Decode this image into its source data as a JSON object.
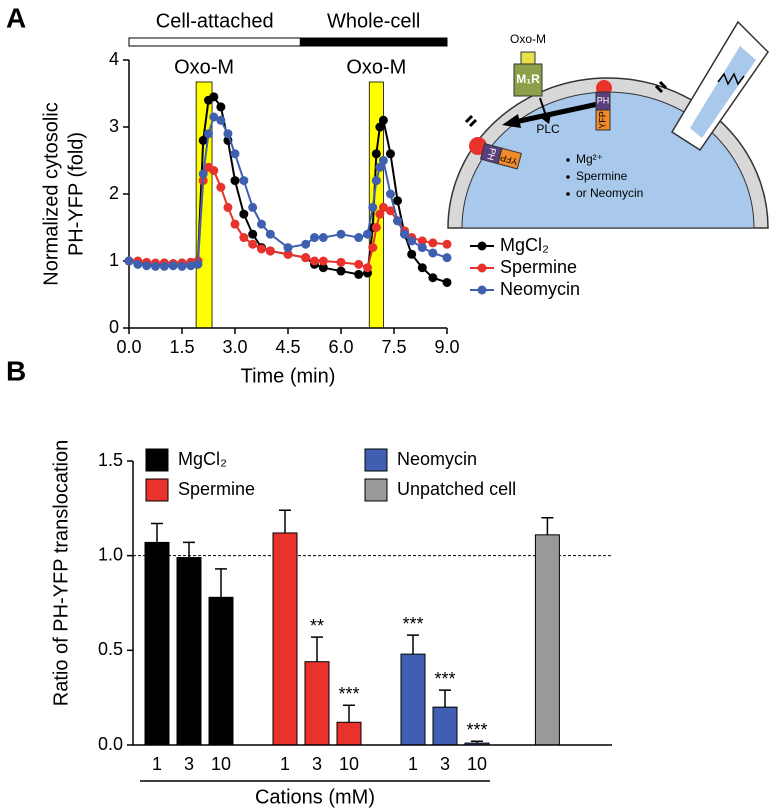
{
  "chart_data": [
    {
      "type": "line",
      "panel_label": "A",
      "x_label": "Time (min)",
      "y_label": [
        "Normalized cytosolic",
        "PH-YFP (fold)"
      ],
      "x": [
        0,
        0.25,
        0.5,
        0.75,
        1,
        1.25,
        1.5,
        1.75,
        1.95,
        2.1,
        2.25,
        2.4,
        2.6,
        2.8,
        3.0,
        3.25,
        3.5,
        3.75,
        4.0,
        4.5,
        5.0,
        5.25,
        5.5,
        6.0,
        6.5,
        6.75,
        6.9,
        7.0,
        7.1,
        7.2,
        7.4,
        7.6,
        7.8,
        8.0,
        8.3,
        8.6,
        9.0
      ],
      "series": [
        {
          "name": "MgCl₂",
          "color": "#000000",
          "values": [
            1.0,
            0.98,
            0.97,
            0.96,
            0.97,
            0.96,
            0.97,
            0.98,
            1.0,
            2.8,
            3.4,
            3.45,
            3.3,
            2.8,
            2.2,
            1.7,
            1.4,
            1.2,
            1.15,
            1.1,
            1.05,
            0.95,
            0.9,
            0.85,
            0.8,
            0.82,
            1.5,
            2.6,
            3.0,
            3.1,
            2.6,
            1.9,
            1.4,
            1.1,
            0.9,
            0.75,
            0.68
          ]
        },
        {
          "name": "Spermine",
          "color": "#e8322b",
          "values": [
            1.0,
            1.0,
            0.98,
            0.97,
            0.97,
            0.96,
            0.97,
            0.98,
            1.0,
            2.2,
            2.4,
            2.35,
            2.1,
            1.8,
            1.55,
            1.35,
            1.25,
            1.18,
            1.15,
            1.1,
            1.05,
            1.0,
            1.0,
            0.98,
            0.95,
            0.9,
            1.2,
            1.5,
            1.7,
            1.8,
            1.75,
            1.6,
            1.45,
            1.35,
            1.3,
            1.27,
            1.25
          ]
        },
        {
          "name": "Neomycin",
          "color": "#3f5fb0",
          "values": [
            1.0,
            0.95,
            0.93,
            0.92,
            0.92,
            0.93,
            0.92,
            0.93,
            0.95,
            2.3,
            2.9,
            3.15,
            3.1,
            2.9,
            2.6,
            2.2,
            1.8,
            1.55,
            1.4,
            1.2,
            1.25,
            1.35,
            1.35,
            1.4,
            1.35,
            1.4,
            1.8,
            2.2,
            2.4,
            2.5,
            2.0,
            1.6,
            1.4,
            1.3,
            1.2,
            1.12,
            1.05
          ]
        }
      ],
      "xlim": [
        0,
        9
      ],
      "xticks": [
        {
          "value": 0,
          "label": "0.0"
        },
        1.5,
        {
          "value": 3,
          "label": "3.0"
        },
        4.5,
        {
          "value": 6,
          "label": "6.0"
        },
        7.5,
        {
          "value": 9,
          "label": "9.0"
        }
      ],
      "ylim": [
        0,
        4
      ],
      "yticks": [
        0,
        1,
        2,
        3,
        4
      ],
      "shaded_regions": [
        {
          "label": "Oxo-M",
          "x": [
            1.9,
            2.35
          ],
          "color": "#ffff00"
        },
        {
          "label": "Oxo-M",
          "x": [
            6.8,
            7.2
          ],
          "color": "#ffff00"
        }
      ],
      "protocol": [
        {
          "label": "Cell-attached",
          "x": [
            0,
            4.85
          ],
          "color": "#ffffff"
        },
        {
          "label": "Whole-cell",
          "x": [
            4.85,
            9
          ],
          "color": "#000000"
        }
      ],
      "legend": "right",
      "diagram": {
        "ligand": "Oxo-M",
        "receptor": "M₁R",
        "enzyme": "PLC",
        "probe": [
          "PH",
          "YFP"
        ],
        "cations": [
          "Mg²⁺",
          "Spermine",
          "or Neomycin"
        ]
      }
    },
    {
      "type": "bar",
      "panel_label": "B",
      "x_label": "Cations (mM)",
      "y_label": "Ratio of PH-YFP translocation",
      "categories": [
        "1",
        "3",
        "10",
        "1",
        "3",
        "10",
        "1",
        "3",
        "10",
        null
      ],
      "series": [
        {
          "name": "MgCl₂",
          "color": "#000000",
          "values": [
            1.07,
            0.99,
            0.78,
            null,
            null,
            null,
            null,
            null,
            null,
            null
          ],
          "errors": [
            0.1,
            0.08,
            0.15,
            null,
            null,
            null,
            null,
            null,
            null,
            null
          ],
          "significance": [
            null,
            null,
            null,
            null,
            null,
            null,
            null,
            null,
            null,
            null
          ]
        },
        {
          "name": "Spermine",
          "color": "#e8322b",
          "values": [
            null,
            null,
            null,
            1.12,
            0.44,
            0.12,
            null,
            null,
            null,
            null
          ],
          "errors": [
            null,
            null,
            null,
            0.12,
            0.13,
            0.09,
            null,
            null,
            null,
            null
          ],
          "significance": [
            null,
            null,
            null,
            null,
            "**",
            "***",
            null,
            null,
            null,
            null
          ]
        },
        {
          "name": "Neomycin",
          "color": "#3f5fb0",
          "values": [
            null,
            null,
            null,
            null,
            null,
            null,
            0.48,
            0.2,
            0.01,
            null
          ],
          "errors": [
            null,
            null,
            null,
            null,
            null,
            null,
            0.1,
            0.09,
            0.01,
            null
          ],
          "significance": [
            null,
            null,
            null,
            null,
            null,
            null,
            "***",
            "***",
            "***",
            null
          ]
        },
        {
          "name": "Unpatched cell",
          "color": "#999999",
          "values": [
            null,
            null,
            null,
            null,
            null,
            null,
            null,
            null,
            null,
            1.11
          ],
          "errors": [
            null,
            null,
            null,
            null,
            null,
            null,
            null,
            null,
            null,
            0.09
          ],
          "significance": [
            null,
            null,
            null,
            null,
            null,
            null,
            null,
            null,
            null,
            null
          ]
        }
      ],
      "ylim": [
        0,
        1.5
      ],
      "yticks": [
        {
          "value": 0,
          "label": "0.0"
        },
        0.5,
        {
          "value": 1,
          "label": "1.0"
        },
        1.5
      ],
      "hline": 1.0
    }
  ]
}
